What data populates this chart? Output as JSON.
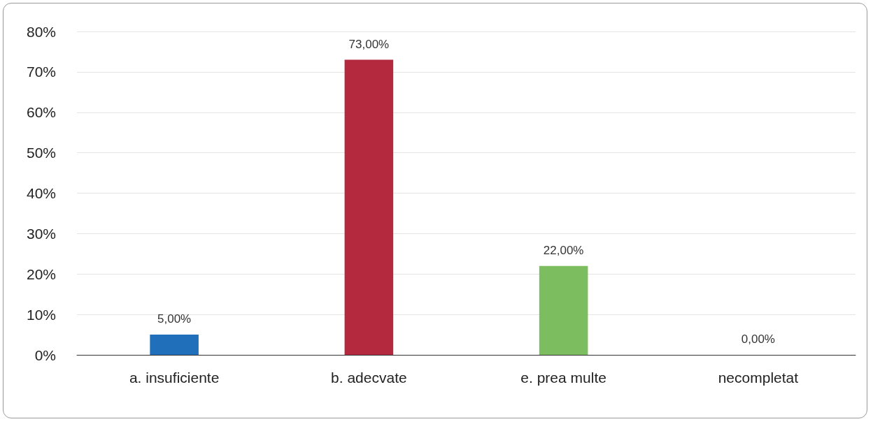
{
  "chart_data": {
    "type": "bar",
    "categories": [
      "a. insuficiente",
      "b. adecvate",
      "e. prea multe",
      "necompletat"
    ],
    "values": [
      5,
      73,
      22,
      0
    ],
    "colors": [
      "#1f6fba",
      "#b5293f",
      "#7cbd5f",
      "#7cbd5f"
    ],
    "value_labels": [
      "5,00%",
      "73,00%",
      "22,00%",
      "0,00%"
    ],
    "ylim": [
      0,
      80
    ],
    "yticks": [
      {
        "value": 0,
        "label": "0%"
      },
      {
        "value": 10,
        "label": "10%"
      },
      {
        "value": 20,
        "label": "20%"
      },
      {
        "value": 30,
        "label": "30%"
      },
      {
        "value": 40,
        "label": "40%"
      },
      {
        "value": 50,
        "label": "50%"
      },
      {
        "value": 60,
        "label": "60%"
      },
      {
        "value": 70,
        "label": "70%"
      },
      {
        "value": 80,
        "label": "80%"
      }
    ],
    "grid": "y"
  }
}
